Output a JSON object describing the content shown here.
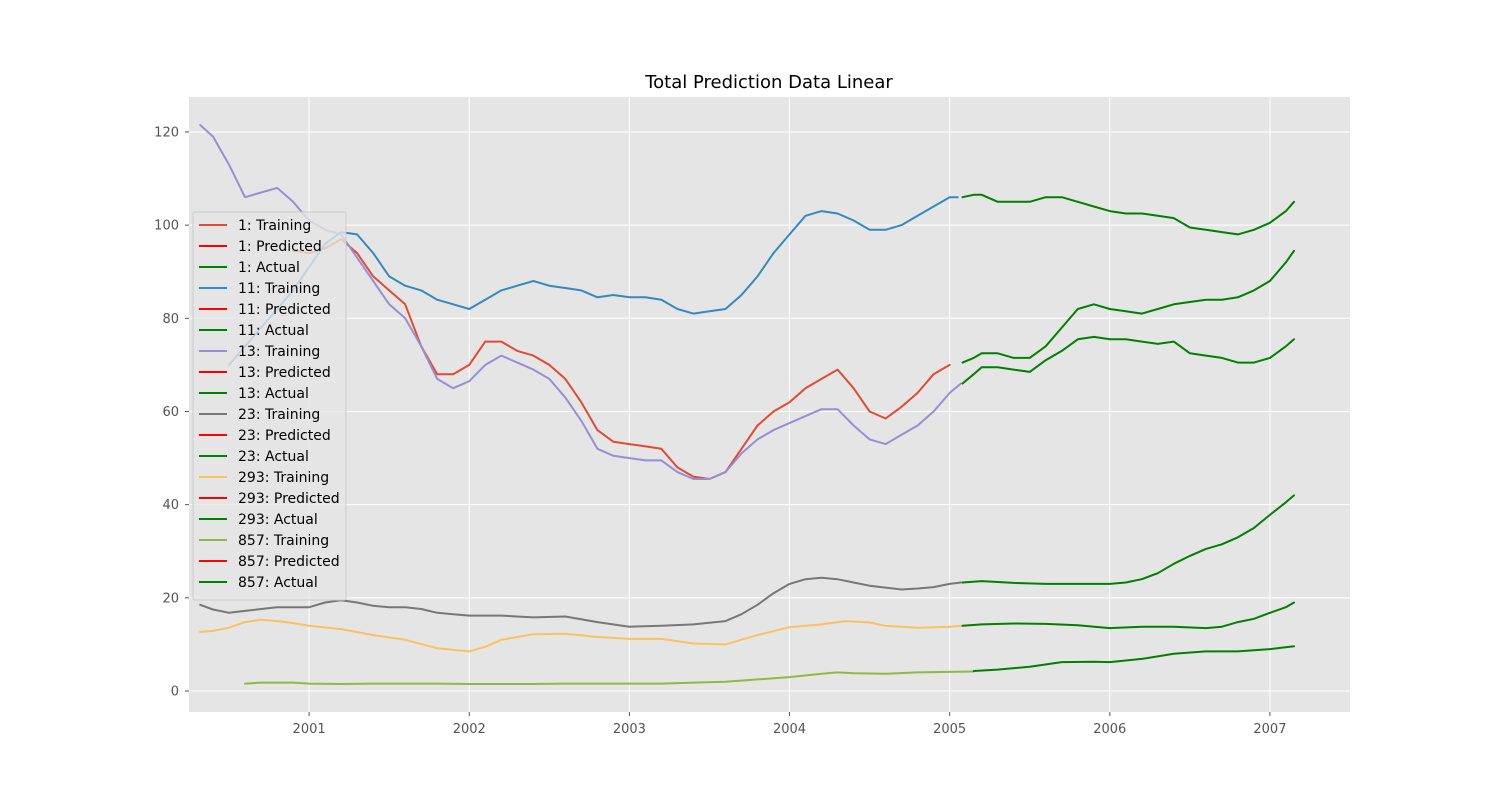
{
  "chart_data": {
    "type": "line",
    "title": "Total Prediction Data Linear",
    "xlabel": "",
    "ylabel": "",
    "xlim": [
      2000.25,
      2007.5
    ],
    "ylim": [
      -4.5,
      127.5
    ],
    "x_ticks": [
      2001,
      2002,
      2003,
      2004,
      2005,
      2006,
      2007
    ],
    "x_tick_labels": [
      "2001",
      "2002",
      "2003",
      "2004",
      "2005",
      "2006",
      "2007"
    ],
    "y_ticks": [
      0,
      20,
      40,
      60,
      80,
      100,
      120
    ],
    "y_tick_labels": [
      "0",
      "20",
      "40",
      "60",
      "80",
      "100",
      "120"
    ],
    "grid": true,
    "legend_position": "left",
    "background": "#e5e5e5",
    "series": [
      {
        "name": "1: Training",
        "color": "#e24a33",
        "x": [
          2000.9,
          2001.0,
          2001.1,
          2001.2,
          2001.3,
          2001.4,
          2001.5,
          2001.6,
          2001.7,
          2001.8,
          2001.9,
          2002.0,
          2002.1,
          2002.2,
          2002.3,
          2002.4,
          2002.5,
          2002.6,
          2002.7,
          2002.8,
          2002.9,
          2003.0,
          2003.1,
          2003.2,
          2003.3,
          2003.4,
          2003.5,
          2003.6,
          2003.7,
          2003.8,
          2003.9,
          2004.0,
          2004.1,
          2004.2,
          2004.3,
          2004.4,
          2004.5,
          2004.6,
          2004.7,
          2004.8,
          2004.9,
          2005.0
        ],
        "y": [
          94.5,
          94,
          95,
          97,
          94,
          89,
          86,
          83,
          74,
          68,
          68,
          70,
          75,
          75,
          73,
          72,
          70,
          67,
          62,
          56,
          53.5,
          53,
          52.5,
          52,
          48,
          46,
          45.5,
          47,
          52,
          57,
          60,
          62,
          65,
          67,
          69,
          65,
          60,
          58.5,
          61,
          64,
          68,
          70
        ]
      },
      {
        "name": "1: Predicted",
        "color": "#ff0000",
        "x": [],
        "y": []
      },
      {
        "name": "1: Actual",
        "color": "#008000",
        "x": [
          2005.08,
          2005.15,
          2005.2,
          2005.3,
          2005.4,
          2005.5,
          2005.6,
          2005.7,
          2005.8,
          2005.9,
          2006.0,
          2006.1,
          2006.2,
          2006.3,
          2006.4,
          2006.5,
          2006.6,
          2006.7,
          2006.8,
          2006.9,
          2007.0,
          2007.1,
          2007.15
        ],
        "y": [
          70.5,
          71.5,
          72.5,
          72.5,
          71.5,
          71.5,
          74,
          78,
          82,
          83,
          82,
          81.5,
          81,
          82,
          83,
          83.5,
          84,
          84,
          84.5,
          86,
          88,
          92,
          94.5
        ]
      },
      {
        "name": "11: Training",
        "color": "#348abd",
        "x": [
          2000.5,
          2000.6,
          2000.7,
          2000.8,
          2000.9,
          2001.0,
          2001.1,
          2001.2,
          2001.3,
          2001.4,
          2001.5,
          2001.6,
          2001.7,
          2001.8,
          2001.9,
          2002.0,
          2002.1,
          2002.2,
          2002.3,
          2002.4,
          2002.5,
          2002.6,
          2002.7,
          2002.8,
          2002.9,
          2003.0,
          2003.1,
          2003.2,
          2003.3,
          2003.4,
          2003.5,
          2003.6,
          2003.7,
          2003.8,
          2003.9,
          2004.0,
          2004.1,
          2004.2,
          2004.3,
          2004.4,
          2004.5,
          2004.6,
          2004.7,
          2004.8,
          2004.9,
          2005.0,
          2005.05
        ],
        "y": [
          70,
          74,
          78,
          82,
          86,
          91,
          96,
          98.5,
          98,
          94,
          89,
          87,
          86,
          84,
          83,
          82,
          84,
          86,
          87,
          88,
          87,
          86.5,
          86,
          84.5,
          85,
          84.5,
          84.5,
          84,
          82,
          81,
          81.5,
          82,
          85,
          89,
          94,
          98,
          102,
          103,
          102.5,
          101,
          99,
          99,
          100,
          102,
          104,
          106,
          106
        ]
      },
      {
        "name": "11: Predicted",
        "color": "#ff0000",
        "x": [],
        "y": []
      },
      {
        "name": "11: Actual",
        "color": "#008000",
        "x": [
          2005.08,
          2005.15,
          2005.2,
          2005.3,
          2005.4,
          2005.5,
          2005.6,
          2005.7,
          2005.8,
          2005.9,
          2006.0,
          2006.1,
          2006.2,
          2006.3,
          2006.4,
          2006.5,
          2006.6,
          2006.7,
          2006.8,
          2006.9,
          2007.0,
          2007.1,
          2007.15
        ],
        "y": [
          106,
          106.5,
          106.5,
          105,
          105,
          105,
          106,
          106,
          105,
          104,
          103,
          102.5,
          102.5,
          102,
          101.5,
          99.5,
          99,
          98.5,
          98,
          99,
          100.5,
          103,
          105
        ]
      },
      {
        "name": "13: Training",
        "color": "#988ed5",
        "x": [
          2000.32,
          2000.4,
          2000.5,
          2000.6,
          2000.7,
          2000.8,
          2000.9,
          2001.0,
          2001.1,
          2001.2,
          2001.3,
          2001.4,
          2001.5,
          2001.6,
          2001.7,
          2001.8,
          2001.9,
          2002.0,
          2002.1,
          2002.2,
          2002.3,
          2002.4,
          2002.5,
          2002.6,
          2002.7,
          2002.8,
          2002.9,
          2003.0,
          2003.1,
          2003.2,
          2003.3,
          2003.4,
          2003.5,
          2003.6,
          2003.7,
          2003.8,
          2003.9,
          2004.0,
          2004.1,
          2004.2,
          2004.3,
          2004.4,
          2004.5,
          2004.6,
          2004.7,
          2004.8,
          2004.9,
          2005.0,
          2005.07
        ],
        "y": [
          121.5,
          119,
          113,
          106,
          107,
          108,
          105,
          101,
          99,
          98,
          93,
          88,
          83,
          80,
          74,
          67,
          65,
          66.5,
          70,
          72,
          70.5,
          69,
          67,
          63,
          58,
          52,
          50.5,
          50,
          49.5,
          49.5,
          47,
          45.5,
          45.5,
          47,
          51,
          54,
          56,
          57.5,
          59,
          60.5,
          60.5,
          57,
          54,
          53,
          55,
          57,
          60,
          64,
          66
        ]
      },
      {
        "name": "13: Predicted",
        "color": "#ff0000",
        "x": [],
        "y": []
      },
      {
        "name": "13: Actual",
        "color": "#008000",
        "x": [
          2005.08,
          2005.15,
          2005.2,
          2005.3,
          2005.4,
          2005.5,
          2005.6,
          2005.7,
          2005.8,
          2005.9,
          2006.0,
          2006.1,
          2006.2,
          2006.3,
          2006.4,
          2006.5,
          2006.6,
          2006.7,
          2006.8,
          2006.9,
          2007.0,
          2007.1,
          2007.15
        ],
        "y": [
          66,
          68,
          69.5,
          69.5,
          69,
          68.5,
          71,
          73,
          75.5,
          76,
          75.5,
          75.5,
          75,
          74.5,
          75,
          72.5,
          72,
          71.5,
          70.5,
          70.5,
          71.5,
          74,
          75.5
        ]
      },
      {
        "name": "23: Training",
        "color": "#777777",
        "x": [
          2000.32,
          2000.4,
          2000.5,
          2000.6,
          2000.7,
          2000.8,
          2000.9,
          2001.0,
          2001.1,
          2001.2,
          2001.3,
          2001.4,
          2001.5,
          2001.6,
          2001.7,
          2001.8,
          2001.9,
          2002.0,
          2002.2,
          2002.4,
          2002.6,
          2002.8,
          2003.0,
          2003.2,
          2003.4,
          2003.6,
          2003.7,
          2003.8,
          2003.9,
          2004.0,
          2004.1,
          2004.2,
          2004.3,
          2004.4,
          2004.5,
          2004.6,
          2004.7,
          2004.8,
          2004.9,
          2005.0,
          2005.07
        ],
        "y": [
          18.5,
          17.5,
          16.8,
          17.2,
          17.6,
          18,
          18,
          18,
          19,
          19.5,
          19,
          18.3,
          18,
          18,
          17.6,
          16.8,
          16.5,
          16.2,
          16.2,
          15.8,
          16,
          14.8,
          13.8,
          14,
          14.3,
          15,
          16.5,
          18.5,
          21,
          23,
          24,
          24.3,
          24,
          23.3,
          22.6,
          22.2,
          21.8,
          22,
          22.3,
          23,
          23.3
        ]
      },
      {
        "name": "23: Predicted",
        "color": "#ff0000",
        "x": [],
        "y": []
      },
      {
        "name": "23: Actual",
        "color": "#008000",
        "x": [
          2005.08,
          2005.2,
          2005.4,
          2005.6,
          2005.8,
          2006.0,
          2006.1,
          2006.2,
          2006.3,
          2006.4,
          2006.5,
          2006.6,
          2006.7,
          2006.8,
          2006.9,
          2007.0,
          2007.1,
          2007.15
        ],
        "y": [
          23.3,
          23.6,
          23.2,
          23,
          23,
          23,
          23.3,
          24,
          25.3,
          27.3,
          29,
          30.5,
          31.5,
          33,
          35,
          37.8,
          40.5,
          42
        ]
      },
      {
        "name": "293: Training",
        "color": "#fbc15e",
        "x": [
          2000.32,
          2000.4,
          2000.5,
          2000.6,
          2000.7,
          2000.8,
          2000.9,
          2001.0,
          2001.2,
          2001.4,
          2001.6,
          2001.8,
          2002.0,
          2002.1,
          2002.2,
          2002.3,
          2002.4,
          2002.6,
          2002.8,
          2003.0,
          2003.2,
          2003.4,
          2003.6,
          2003.8,
          2004.0,
          2004.2,
          2004.35,
          2004.5,
          2004.6,
          2004.8,
          2005.0,
          2005.07
        ],
        "y": [
          12.7,
          12.9,
          13.6,
          14.8,
          15.3,
          15,
          14.6,
          14,
          13.3,
          12,
          11,
          9.2,
          8.5,
          9.5,
          11,
          11.6,
          12.2,
          12.3,
          11.6,
          11.2,
          11.2,
          10.2,
          10,
          12,
          13.7,
          14.3,
          15,
          14.7,
          14,
          13.6,
          13.8,
          14
        ]
      },
      {
        "name": "293: Predicted",
        "color": "#ff0000",
        "x": [],
        "y": []
      },
      {
        "name": "293: Actual",
        "color": "#008000",
        "x": [
          2005.08,
          2005.2,
          2005.4,
          2005.6,
          2005.8,
          2006.0,
          2006.2,
          2006.4,
          2006.6,
          2006.7,
          2006.8,
          2006.9,
          2007.0,
          2007.1,
          2007.15
        ],
        "y": [
          14,
          14.3,
          14.5,
          14.4,
          14.1,
          13.5,
          13.8,
          13.8,
          13.5,
          13.8,
          14.8,
          15.5,
          16.8,
          18,
          19
        ]
      },
      {
        "name": "857: Training",
        "color": "#8eba42",
        "x": [
          2000.6,
          2000.7,
          2000.8,
          2000.9,
          2001.0,
          2001.2,
          2001.4,
          2001.6,
          2001.8,
          2002.0,
          2002.2,
          2002.4,
          2002.6,
          2002.8,
          2003.0,
          2003.2,
          2003.4,
          2003.6,
          2003.8,
          2004.0,
          2004.2,
          2004.3,
          2004.4,
          2004.6,
          2004.8,
          2005.0,
          2005.15
        ],
        "y": [
          1.6,
          1.8,
          1.8,
          1.8,
          1.6,
          1.5,
          1.6,
          1.6,
          1.6,
          1.5,
          1.5,
          1.5,
          1.6,
          1.6,
          1.6,
          1.6,
          1.8,
          2,
          2.5,
          3,
          3.7,
          4,
          3.8,
          3.7,
          4,
          4.1,
          4.2
        ]
      },
      {
        "name": "857: Predicted",
        "color": "#ff0000",
        "x": [],
        "y": []
      },
      {
        "name": "857: Actual",
        "color": "#008000",
        "x": [
          2005.15,
          2005.3,
          2005.5,
          2005.7,
          2005.9,
          2006.0,
          2006.2,
          2006.4,
          2006.6,
          2006.8,
          2007.0,
          2007.15
        ],
        "y": [
          4.3,
          4.6,
          5.2,
          6.2,
          6.3,
          6.2,
          6.9,
          8,
          8.5,
          8.5,
          9,
          9.6
        ]
      }
    ]
  }
}
